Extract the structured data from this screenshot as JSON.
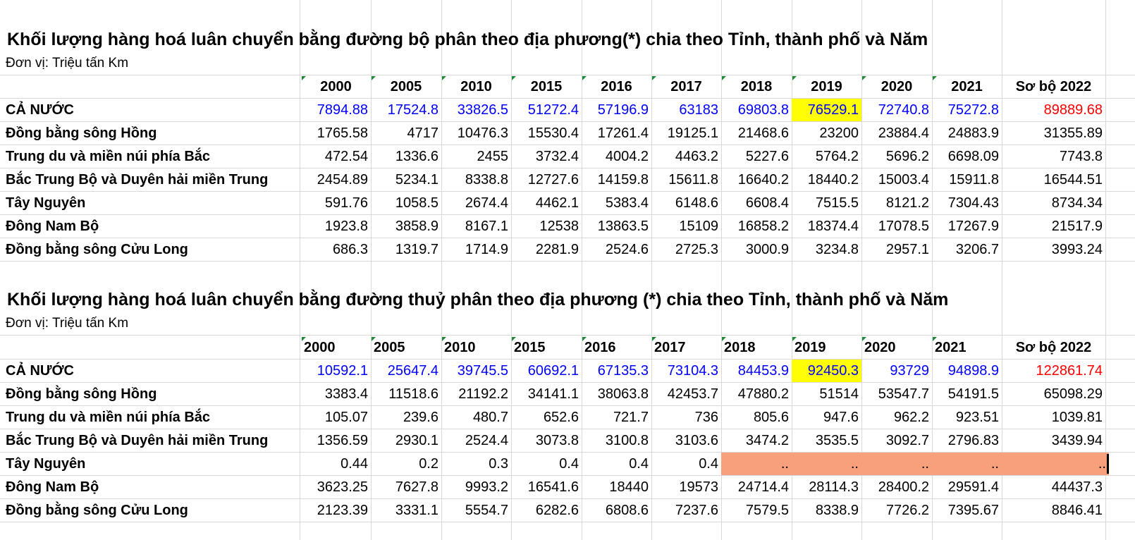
{
  "columns": [
    "2000",
    "2005",
    "2010",
    "2015",
    "2016",
    "2017",
    "2018",
    "2019",
    "2020",
    "2021",
    "Sơ bộ 2022"
  ],
  "colors": {
    "national_row": "#0000ff",
    "prelim_col": "#ff0000",
    "highlight": "#ffff00",
    "missing_fill": "#f8a07c"
  },
  "road": {
    "title": "Khối lượng hàng hoá luân chuyển bằng đường bộ phân theo địa phương(*) chia theo Tỉnh, thành phố và Năm",
    "unit": "Đơn vị: Triệu tấn Km",
    "rows": [
      {
        "label": "CẢ NƯỚC",
        "values": [
          "7894.88",
          "17524.8",
          "33826.5",
          "51272.4",
          "57196.9",
          "63183",
          "69803.8",
          "76529.1",
          "72740.8",
          "75272.8",
          "89889.68"
        ]
      },
      {
        "label": "Đồng bằng sông Hồng",
        "values": [
          "1765.58",
          "4717",
          "10476.3",
          "15530.4",
          "17261.4",
          "19125.1",
          "21468.6",
          "23200",
          "23884.4",
          "24883.9",
          "31355.89"
        ]
      },
      {
        "label": "Trung du và miền núi phía Bắc",
        "values": [
          "472.54",
          "1336.6",
          "2455",
          "3732.4",
          "4004.2",
          "4463.2",
          "5227.6",
          "5764.2",
          "5696.2",
          "6698.09",
          "7743.8"
        ]
      },
      {
        "label": "Bắc Trung Bộ và Duyên hải miền Trung",
        "values": [
          "2454.89",
          "5234.1",
          "8338.8",
          "12727.6",
          "14159.8",
          "15611.8",
          "16640.2",
          "18440.2",
          "15003.4",
          "15911.8",
          "16544.51"
        ]
      },
      {
        "label": "Tây Nguyên",
        "values": [
          "591.76",
          "1058.5",
          "2674.4",
          "4462.1",
          "5383.4",
          "6148.6",
          "6608.4",
          "7515.5",
          "8121.2",
          "7304.43",
          "8734.34"
        ]
      },
      {
        "label": "Đông Nam Bộ",
        "values": [
          "1923.8",
          "3858.9",
          "8167.1",
          "12538",
          "13863.5",
          "15109",
          "16858.2",
          "18374.4",
          "17078.5",
          "17267.9",
          "21517.9"
        ]
      },
      {
        "label": "Đồng bằng sông Cửu Long",
        "values": [
          "686.3",
          "1319.7",
          "1714.9",
          "2281.9",
          "2524.6",
          "2725.3",
          "3000.9",
          "3234.8",
          "2957.1",
          "3206.7",
          "3993.24"
        ]
      }
    ]
  },
  "water": {
    "title": "Khối lượng hàng hoá luân chuyển bằng đường thuỷ phân theo địa phương (*) chia theo Tỉnh, thành phố và Năm",
    "unit": "Đơn vị: Triệu tấn Km",
    "rows": [
      {
        "label": "CẢ NƯỚC",
        "values": [
          "10592.1",
          "25647.4",
          "39745.5",
          "60692.1",
          "67135.3",
          "73104.3",
          "84453.9",
          "92450.3",
          "93729",
          "94898.9",
          "122861.74"
        ]
      },
      {
        "label": "Đồng bằng sông Hồng",
        "values": [
          "3383.4",
          "11518.6",
          "21192.2",
          "34141.1",
          "38063.8",
          "42453.7",
          "47880.2",
          "51514",
          "53547.7",
          "54191.5",
          "65098.29"
        ]
      },
      {
        "label": "Trung du và miền núi phía Bắc",
        "values": [
          "105.07",
          "239.6",
          "480.7",
          "652.6",
          "721.7",
          "736",
          "805.6",
          "947.6",
          "962.2",
          "923.51",
          "1039.81"
        ]
      },
      {
        "label": "Bắc Trung Bộ và Duyên hải miền Trung",
        "values": [
          "1356.59",
          "2930.1",
          "2524.4",
          "3073.8",
          "3100.8",
          "3103.6",
          "3474.2",
          "3535.5",
          "3092.7",
          "2796.83",
          "3439.94"
        ]
      },
      {
        "label": "Tây Nguyên",
        "values": [
          "0.44",
          "0.2",
          "0.3",
          "0.4",
          "0.4",
          "0.4",
          "..",
          "..",
          "..",
          "..",
          ".."
        ]
      },
      {
        "label": "Đông Nam Bộ",
        "values": [
          "3623.25",
          "7627.8",
          "9993.2",
          "16541.6",
          "18440",
          "19573",
          "24714.4",
          "28114.3",
          "28400.2",
          "29591.4",
          "44437.3"
        ]
      },
      {
        "label": "Đồng bằng sông Cửu Long",
        "values": [
          "2123.39",
          "3331.1",
          "5554.7",
          "6282.6",
          "6808.6",
          "7237.6",
          "7579.5",
          "8338.9",
          "7726.2",
          "7395.67",
          "8846.41"
        ]
      }
    ]
  }
}
